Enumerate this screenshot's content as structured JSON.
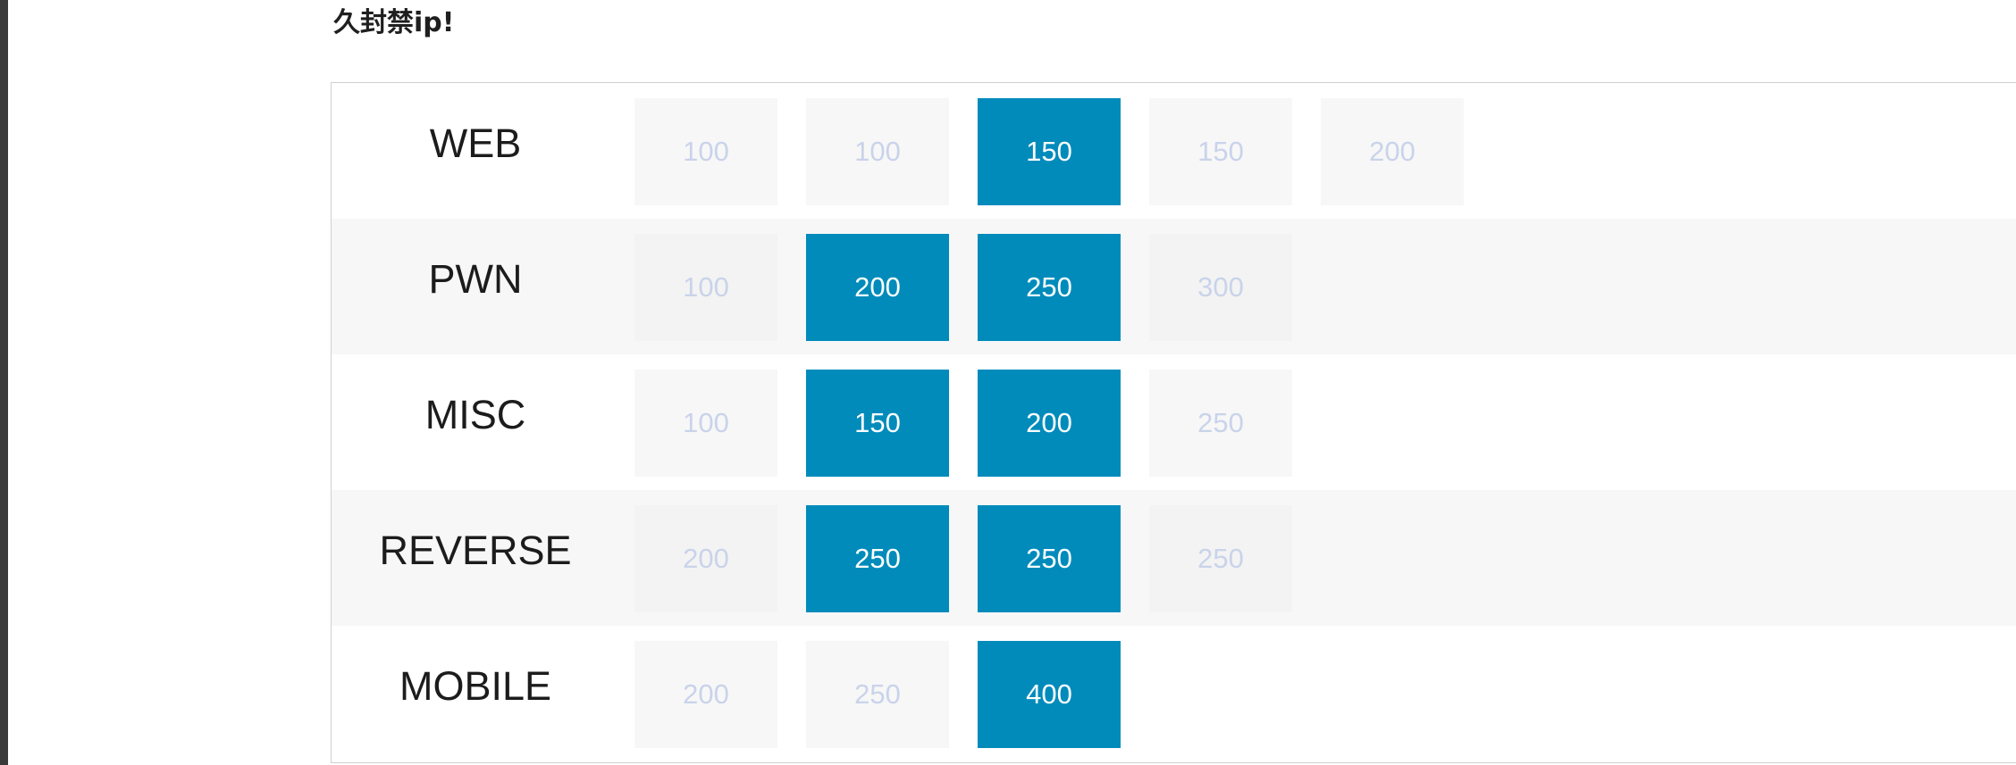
{
  "notice": "久封禁ip!",
  "colors": {
    "solved_bg": "#008bbb",
    "solved_text": "#ffffff",
    "unsolved_bg": "#f7f7f7",
    "unsolved_text": "#c9d3ea"
  },
  "categories": [
    {
      "name": "WEB",
      "challenges": [
        {
          "points": "100",
          "solved": false
        },
        {
          "points": "100",
          "solved": false
        },
        {
          "points": "150",
          "solved": true
        },
        {
          "points": "150",
          "solved": false
        },
        {
          "points": "200",
          "solved": false
        }
      ]
    },
    {
      "name": "PWN",
      "challenges": [
        {
          "points": "100",
          "solved": false
        },
        {
          "points": "200",
          "solved": true
        },
        {
          "points": "250",
          "solved": true
        },
        {
          "points": "300",
          "solved": false
        }
      ]
    },
    {
      "name": "MISC",
      "challenges": [
        {
          "points": "100",
          "solved": false
        },
        {
          "points": "150",
          "solved": true
        },
        {
          "points": "200",
          "solved": true
        },
        {
          "points": "250",
          "solved": false
        }
      ]
    },
    {
      "name": "REVERSE",
      "challenges": [
        {
          "points": "200",
          "solved": false
        },
        {
          "points": "250",
          "solved": true
        },
        {
          "points": "250",
          "solved": true
        },
        {
          "points": "250",
          "solved": false
        }
      ]
    },
    {
      "name": "MOBILE",
      "challenges": [
        {
          "points": "200",
          "solved": false
        },
        {
          "points": "250",
          "solved": false
        },
        {
          "points": "400",
          "solved": true
        }
      ]
    }
  ]
}
